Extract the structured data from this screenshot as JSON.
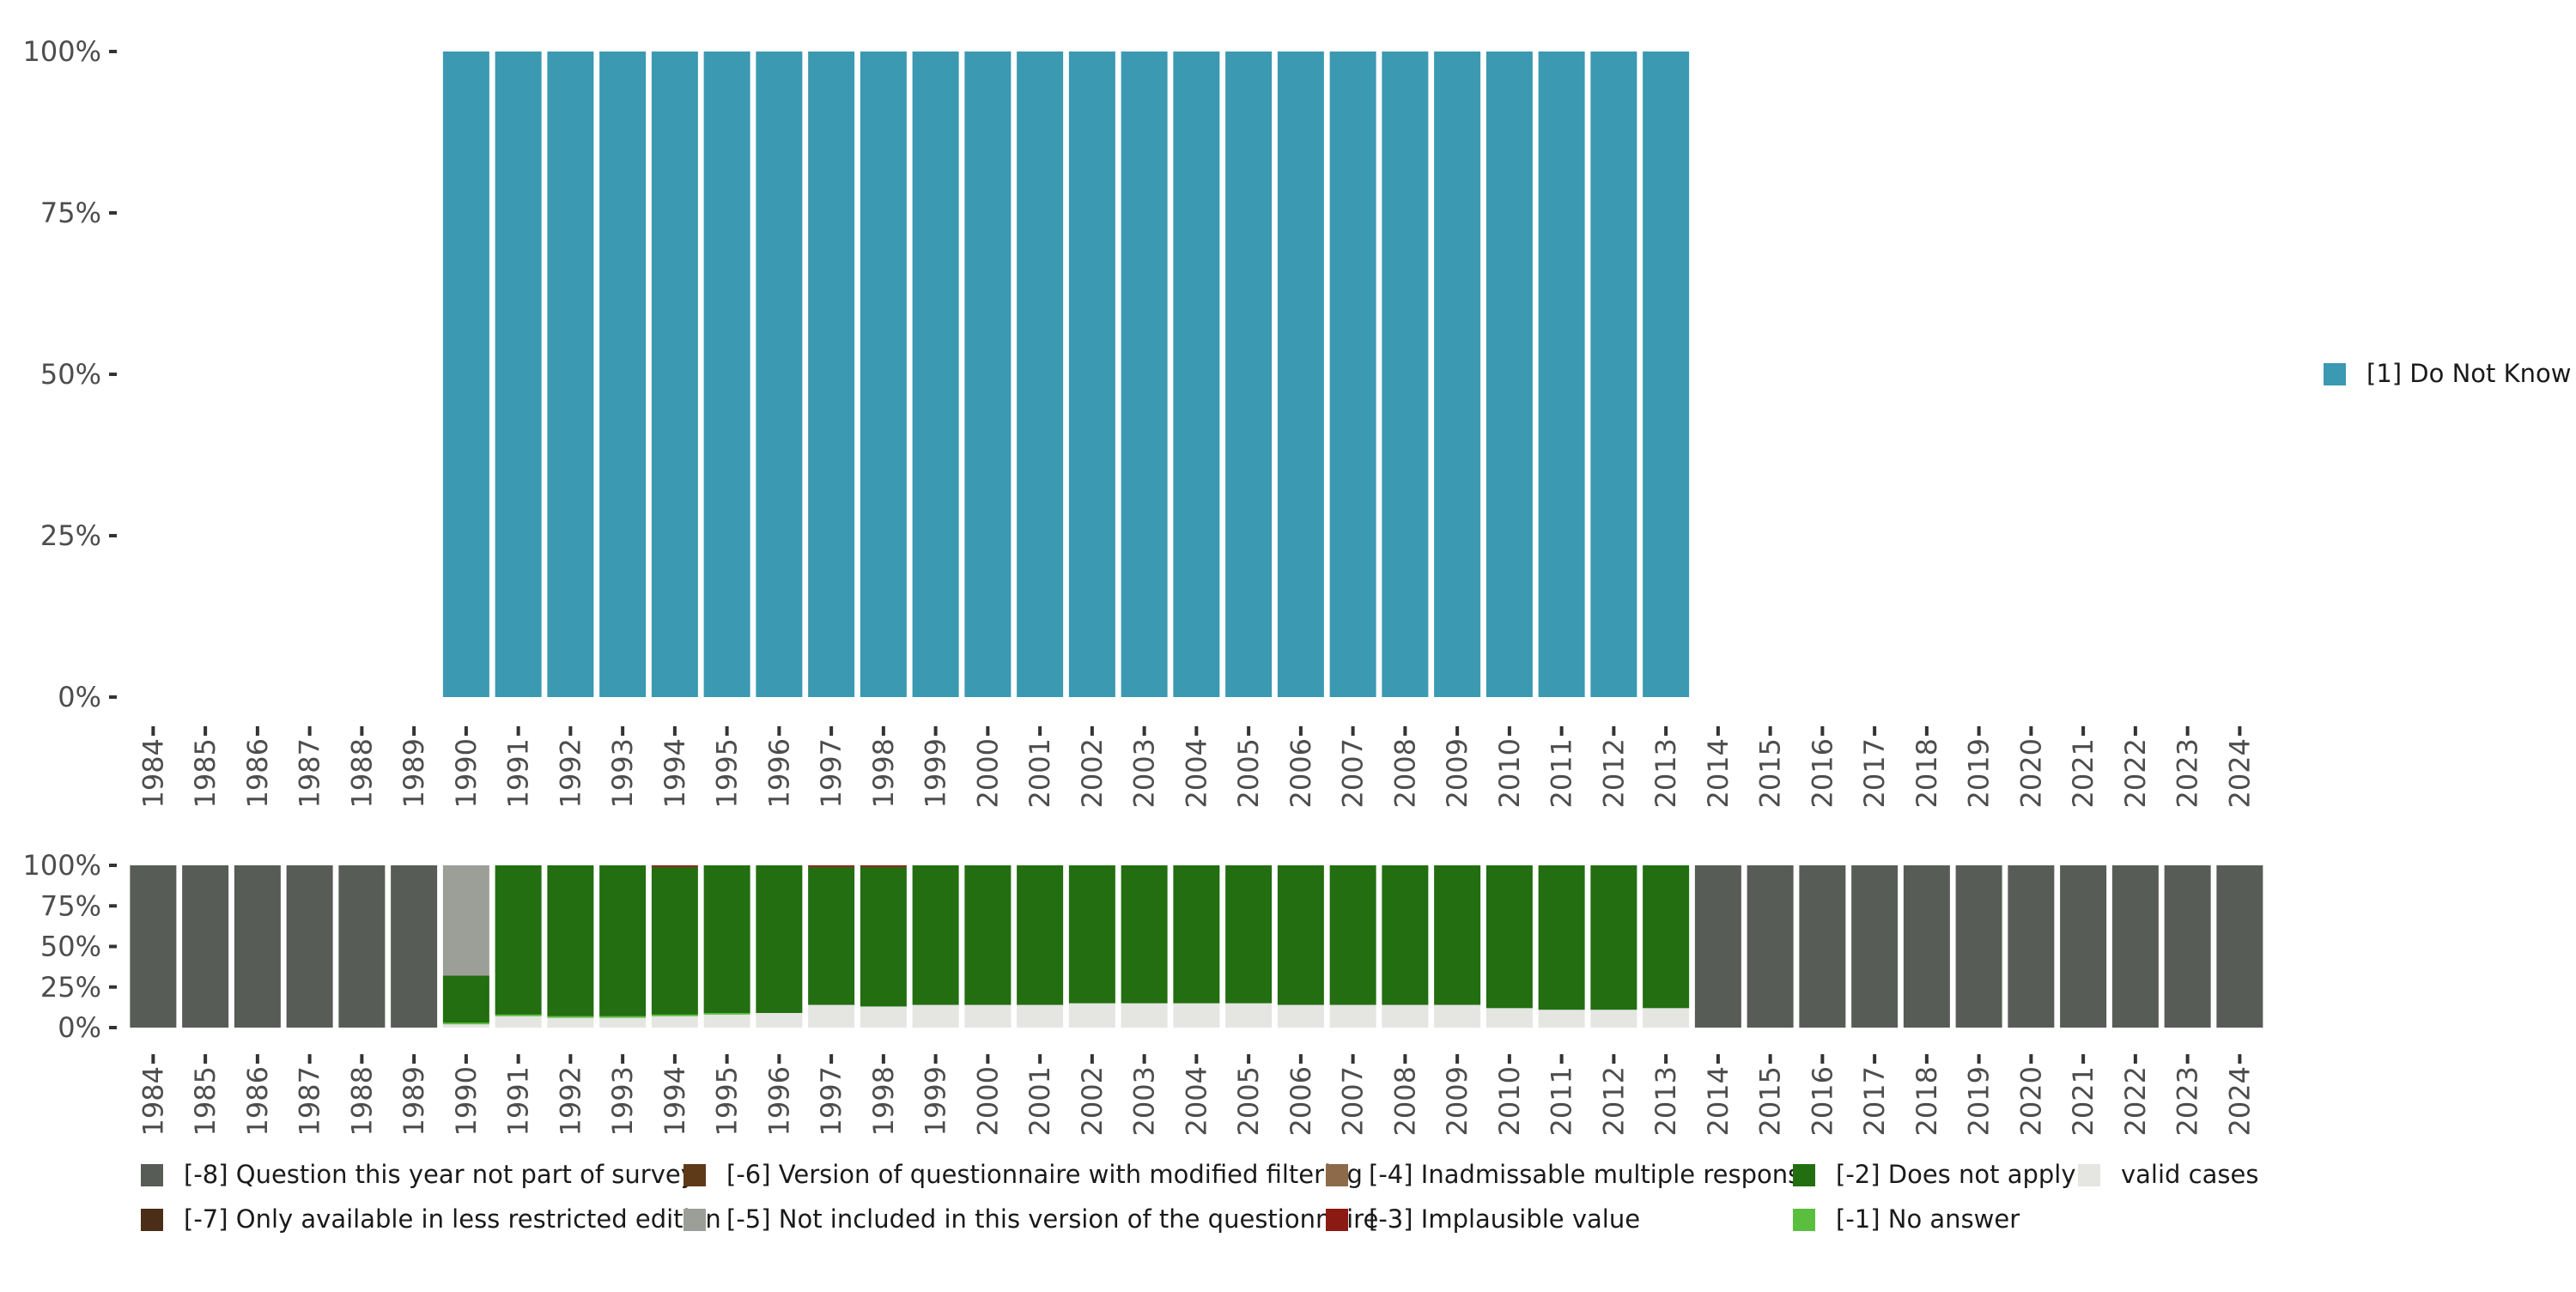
{
  "chart_data": [
    {
      "type": "bar",
      "stacked": true,
      "name": "top-panel",
      "categories": [
        "1984",
        "1985",
        "1986",
        "1987",
        "1988",
        "1989",
        "1990",
        "1991",
        "1992",
        "1993",
        "1994",
        "1995",
        "1996",
        "1997",
        "1998",
        "1999",
        "2000",
        "2001",
        "2002",
        "2003",
        "2004",
        "2005",
        "2006",
        "2007",
        "2008",
        "2009",
        "2010",
        "2011",
        "2012",
        "2013",
        "2014",
        "2015",
        "2016",
        "2017",
        "2018",
        "2019",
        "2020",
        "2021",
        "2022",
        "2023",
        "2024"
      ],
      "y_ticks": [
        "0%",
        "25%",
        "50%",
        "75%",
        "100%"
      ],
      "ylim": [
        0,
        100
      ],
      "series": [
        {
          "name": "[1] Do Not Know",
          "color": "#3b99b1",
          "values": [
            null,
            null,
            null,
            null,
            null,
            null,
            100,
            100,
            100,
            100,
            100,
            100,
            100,
            100,
            100,
            100,
            100,
            100,
            100,
            100,
            100,
            100,
            100,
            100,
            100,
            100,
            100,
            100,
            100,
            100,
            null,
            null,
            null,
            null,
            null,
            null,
            null,
            null,
            null,
            null,
            null
          ]
        }
      ],
      "legend": [
        "[1] Do Not Know"
      ],
      "legend_position": "right"
    },
    {
      "type": "bar",
      "stacked": true,
      "name": "bottom-panel",
      "categories": [
        "1984",
        "1985",
        "1986",
        "1987",
        "1988",
        "1989",
        "1990",
        "1991",
        "1992",
        "1993",
        "1994",
        "1995",
        "1996",
        "1997",
        "1998",
        "1999",
        "2000",
        "2001",
        "2002",
        "2003",
        "2004",
        "2005",
        "2006",
        "2007",
        "2008",
        "2009",
        "2010",
        "2011",
        "2012",
        "2013",
        "2014",
        "2015",
        "2016",
        "2017",
        "2018",
        "2019",
        "2020",
        "2021",
        "2022",
        "2023",
        "2024"
      ],
      "y_ticks": [
        "0%",
        "25%",
        "50%",
        "75%",
        "100%"
      ],
      "ylim": [
        0,
        100
      ],
      "series": [
        {
          "name": "valid cases",
          "color": "#e5e5e2",
          "values": [
            0,
            0,
            0,
            0,
            0,
            0,
            2,
            7,
            6,
            6,
            7,
            8,
            9,
            14,
            13,
            14,
            14,
            14,
            15,
            15,
            15,
            15,
            14,
            14,
            14,
            14,
            12,
            11,
            11,
            12,
            0,
            0,
            0,
            0,
            0,
            0,
            0,
            0,
            0,
            0,
            0
          ]
        },
        {
          "name": "[-1] No answer",
          "color": "#5abf3f",
          "values": [
            0,
            0,
            0,
            0,
            0,
            0,
            1,
            1,
            1,
            1,
            1,
            1,
            0,
            0,
            0,
            0,
            0,
            0,
            0,
            0,
            0,
            0,
            0,
            0,
            0,
            0,
            0,
            0,
            0,
            0,
            0,
            0,
            0,
            0,
            0,
            0,
            0,
            0,
            0,
            0,
            0
          ]
        },
        {
          "name": "[-2] Does not apply",
          "color": "#226e10",
          "values": [
            0,
            0,
            0,
            0,
            0,
            0,
            29,
            92,
            93,
            93,
            91,
            91,
            91,
            85,
            86,
            86,
            86,
            86,
            85,
            85,
            85,
            85,
            86,
            86,
            86,
            86,
            88,
            89,
            89,
            88,
            0,
            0,
            0,
            0,
            0,
            0,
            0,
            0,
            0,
            0,
            0
          ]
        },
        {
          "name": "[-3] Implausible value",
          "color": "#8b1a12",
          "values": [
            0,
            0,
            0,
            0,
            0,
            0,
            0,
            0,
            0,
            0,
            1,
            0,
            0,
            1,
            1,
            0,
            0,
            0,
            0,
            0,
            0,
            0,
            0,
            0,
            0,
            0,
            0,
            0,
            0,
            0,
            0,
            0,
            0,
            0,
            0,
            0,
            0,
            0,
            0,
            0,
            0
          ]
        },
        {
          "name": "[-4] Inadmissable multiple response",
          "color": "#8c6a4a",
          "values": [
            0,
            0,
            0,
            0,
            0,
            0,
            0,
            0,
            0,
            0,
            0,
            0,
            0,
            0,
            0,
            0,
            0,
            0,
            0,
            0,
            0,
            0,
            0,
            0,
            0,
            0,
            0,
            0,
            0,
            0,
            0,
            0,
            0,
            0,
            0,
            0,
            0,
            0,
            0,
            0,
            0
          ]
        },
        {
          "name": "[-5] Not included in this version of the questionnaire",
          "color": "#9c9e98",
          "values": [
            0,
            0,
            0,
            0,
            0,
            0,
            68,
            0,
            0,
            0,
            0,
            0,
            0,
            0,
            0,
            0,
            0,
            0,
            0,
            0,
            0,
            0,
            0,
            0,
            0,
            0,
            0,
            0,
            0,
            0,
            0,
            0,
            0,
            0,
            0,
            0,
            0,
            0,
            0,
            0,
            0
          ]
        },
        {
          "name": "[-6] Version of questionnaire with modified filtering",
          "color": "#5e3a18",
          "values": [
            0,
            0,
            0,
            0,
            0,
            0,
            0,
            0,
            0,
            0,
            0,
            0,
            0,
            0,
            0,
            0,
            0,
            0,
            0,
            0,
            0,
            0,
            0,
            0,
            0,
            0,
            0,
            0,
            0,
            0,
            0,
            0,
            0,
            0,
            0,
            0,
            0,
            0,
            0,
            0,
            0
          ]
        },
        {
          "name": "[-7] Only available in less restricted edition",
          "color": "#4a2e17",
          "values": [
            0,
            0,
            0,
            0,
            0,
            0,
            0,
            0,
            0,
            0,
            0,
            0,
            0,
            0,
            0,
            0,
            0,
            0,
            0,
            0,
            0,
            0,
            0,
            0,
            0,
            0,
            0,
            0,
            0,
            0,
            0,
            0,
            0,
            0,
            0,
            0,
            0,
            0,
            0,
            0,
            0
          ]
        },
        {
          "name": "[-8] Question this year not part of survey",
          "color": "#575c56",
          "values": [
            100,
            100,
            100,
            100,
            100,
            100,
            0,
            0,
            0,
            0,
            0,
            0,
            0,
            0,
            0,
            0,
            0,
            0,
            0,
            0,
            0,
            0,
            0,
            0,
            0,
            0,
            0,
            0,
            0,
            0,
            100,
            100,
            100,
            100,
            100,
            100,
            100,
            100,
            100,
            100,
            100
          ]
        }
      ],
      "legend_position": "bottom",
      "legend": [
        {
          "label": "[-8] Question this year not part of survey",
          "color": "#575c56"
        },
        {
          "label": "[-6] Version of questionnaire with modified filtering",
          "color": "#5e3a18"
        },
        {
          "label": "[-4] Inadmissable multiple response",
          "color": "#8c6a4a"
        },
        {
          "label": "[-2] Does not apply",
          "color": "#226e10"
        },
        {
          "label": "valid cases",
          "color": "#e5e5e2"
        },
        {
          "label": "[-7] Only available in less restricted edition",
          "color": "#4a2e17"
        },
        {
          "label": "[-5] Not included in this version of the questionnaire",
          "color": "#9c9e98"
        },
        {
          "label": "[-3] Implausible value",
          "color": "#8b1a12"
        },
        {
          "label": "[-1] No answer",
          "color": "#5abf3f"
        }
      ]
    }
  ]
}
